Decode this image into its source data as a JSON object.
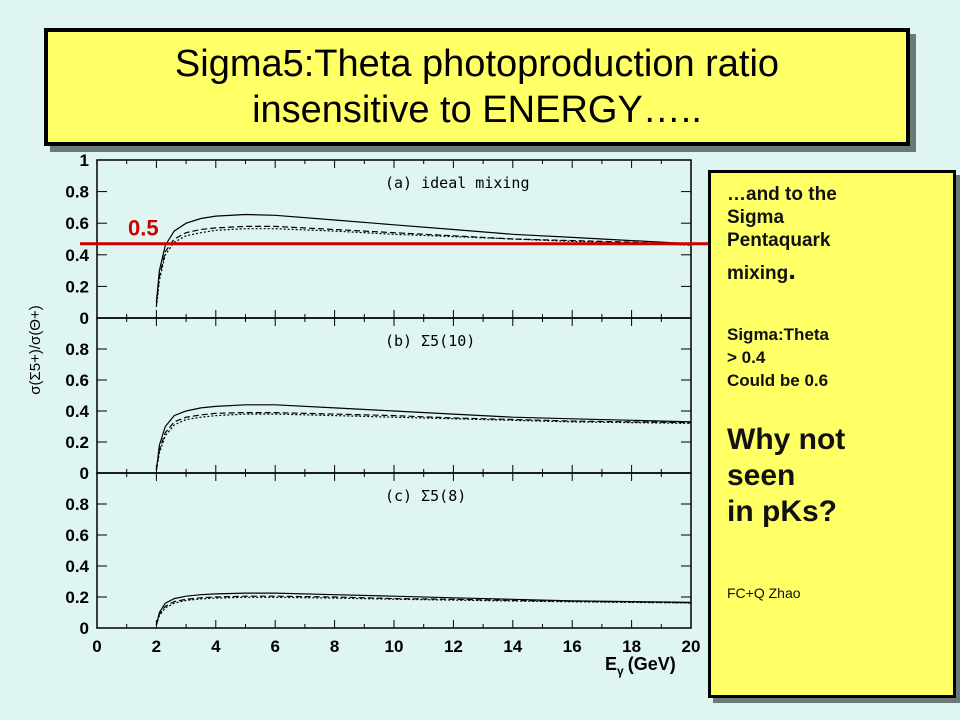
{
  "title": {
    "line1": "Sigma5:Theta photoproduction ratio",
    "line2": "insensitive to ENERGY….."
  },
  "notes": {
    "line1": "…and to the",
    "line2": "Sigma",
    "line3": "Pentaquark",
    "line4": "mixing",
    "line4_dot": ".",
    "line5": "Sigma:Theta",
    "line6": "> 0.4",
    "line7": "Could be 0.6",
    "line8": "Why not",
    "line9": "seen",
    "line10": "in pKs?",
    "credit": "FC+Q Zhao"
  },
  "annotation": {
    "label": "0.5",
    "value": 0.47,
    "color": "#cc0000"
  },
  "chart_data": {
    "type": "line",
    "x_label_main": "E",
    "x_label_sub": "γ",
    "x_label_unit": "(GeV)",
    "y_label": "σ(Σ5+)/σ(Θ+)",
    "xlim": [
      0,
      20
    ],
    "ylim": [
      0,
      1
    ],
    "x_ticks": [
      "0",
      "2",
      "4",
      "6",
      "8",
      "10",
      "12",
      "14",
      "16",
      "18",
      "20"
    ],
    "y_ticks": [
      "0",
      "0.2",
      "0.4",
      "0.6",
      "0.8",
      "1"
    ],
    "y_ticks_lower": [
      "0",
      "0.2",
      "0.4",
      "0.6",
      "0.8"
    ],
    "panels": [
      {
        "label": "(a) ideal mixing",
        "series": [
          {
            "style": "solid",
            "x": [
              2.0,
              2.1,
              2.3,
              2.6,
              3.0,
              3.5,
              4.0,
              5.0,
              6.0,
              8.0,
              10.0,
              12.0,
              14.0,
              16.0,
              18.0,
              20.0
            ],
            "y": [
              0.1,
              0.3,
              0.46,
              0.55,
              0.6,
              0.63,
              0.645,
              0.655,
              0.65,
              0.62,
              0.59,
              0.56,
              0.53,
              0.51,
              0.49,
              0.47
            ]
          },
          {
            "style": "dashed",
            "x": [
              2.0,
              2.1,
              2.3,
              2.6,
              3.0,
              3.5,
              4.0,
              5.0,
              6.0,
              8.0,
              10.0,
              12.0,
              14.0,
              16.0,
              18.0,
              20.0
            ],
            "y": [
              0.08,
              0.26,
              0.42,
              0.5,
              0.54,
              0.56,
              0.57,
              0.58,
              0.58,
              0.56,
              0.54,
              0.52,
              0.5,
              0.49,
              0.48,
              0.465
            ]
          },
          {
            "style": "dotted",
            "x": [
              2.0,
              2.1,
              2.3,
              2.6,
              3.0,
              3.5,
              4.0,
              5.0,
              6.0,
              8.0,
              10.0,
              12.0,
              14.0,
              16.0,
              18.0,
              20.0
            ],
            "y": [
              0.07,
              0.24,
              0.4,
              0.48,
              0.52,
              0.54,
              0.555,
              0.565,
              0.565,
              0.55,
              0.53,
              0.515,
              0.5,
              0.485,
              0.475,
              0.46
            ]
          }
        ]
      },
      {
        "label": "(b) Σ5(10)",
        "series": [
          {
            "style": "solid",
            "x": [
              2.0,
              2.1,
              2.3,
              2.6,
              3.0,
              3.5,
              4.0,
              5.0,
              6.0,
              8.0,
              10.0,
              12.0,
              14.0,
              16.0,
              18.0,
              20.0
            ],
            "y": [
              0.02,
              0.18,
              0.3,
              0.37,
              0.4,
              0.42,
              0.43,
              0.44,
              0.44,
              0.42,
              0.4,
              0.38,
              0.36,
              0.35,
              0.34,
              0.33
            ]
          },
          {
            "style": "dashed",
            "x": [
              2.0,
              2.1,
              2.3,
              2.6,
              3.0,
              3.5,
              4.0,
              5.0,
              6.0,
              8.0,
              10.0,
              12.0,
              14.0,
              16.0,
              18.0,
              20.0
            ],
            "y": [
              0.02,
              0.15,
              0.26,
              0.33,
              0.36,
              0.375,
              0.385,
              0.39,
              0.39,
              0.38,
              0.37,
              0.355,
              0.345,
              0.335,
              0.33,
              0.325
            ]
          },
          {
            "style": "dotted",
            "x": [
              2.0,
              2.1,
              2.3,
              2.6,
              3.0,
              3.5,
              4.0,
              5.0,
              6.0,
              8.0,
              10.0,
              12.0,
              14.0,
              16.0,
              18.0,
              20.0
            ],
            "y": [
              0.02,
              0.13,
              0.24,
              0.31,
              0.345,
              0.36,
              0.37,
              0.38,
              0.38,
              0.37,
              0.36,
              0.35,
              0.34,
              0.33,
              0.325,
              0.32
            ]
          }
        ]
      },
      {
        "label": "(c) Σ5(8)",
        "series": [
          {
            "style": "solid",
            "x": [
              2.0,
              2.1,
              2.3,
              2.6,
              3.0,
              3.5,
              4.0,
              5.0,
              6.0,
              8.0,
              10.0,
              12.0,
              14.0,
              16.0,
              18.0,
              20.0
            ],
            "y": [
              0.02,
              0.1,
              0.16,
              0.19,
              0.205,
              0.215,
              0.22,
              0.225,
              0.225,
              0.215,
              0.205,
              0.195,
              0.185,
              0.175,
              0.17,
              0.165
            ]
          },
          {
            "style": "dashed",
            "x": [
              2.0,
              2.1,
              2.3,
              2.6,
              3.0,
              3.5,
              4.0,
              5.0,
              6.0,
              8.0,
              10.0,
              12.0,
              14.0,
              16.0,
              18.0,
              20.0
            ],
            "y": [
              0.02,
              0.09,
              0.14,
              0.17,
              0.185,
              0.195,
              0.2,
              0.205,
              0.205,
              0.2,
              0.19,
              0.185,
              0.178,
              0.172,
              0.168,
              0.163
            ]
          },
          {
            "style": "dotted",
            "x": [
              2.0,
              2.1,
              2.3,
              2.6,
              3.0,
              3.5,
              4.0,
              5.0,
              6.0,
              8.0,
              10.0,
              12.0,
              14.0,
              16.0,
              18.0,
              20.0
            ],
            "y": [
              0.02,
              0.08,
              0.13,
              0.16,
              0.178,
              0.188,
              0.193,
              0.198,
              0.198,
              0.193,
              0.186,
              0.18,
              0.174,
              0.169,
              0.165,
              0.161
            ]
          }
        ]
      }
    ]
  }
}
